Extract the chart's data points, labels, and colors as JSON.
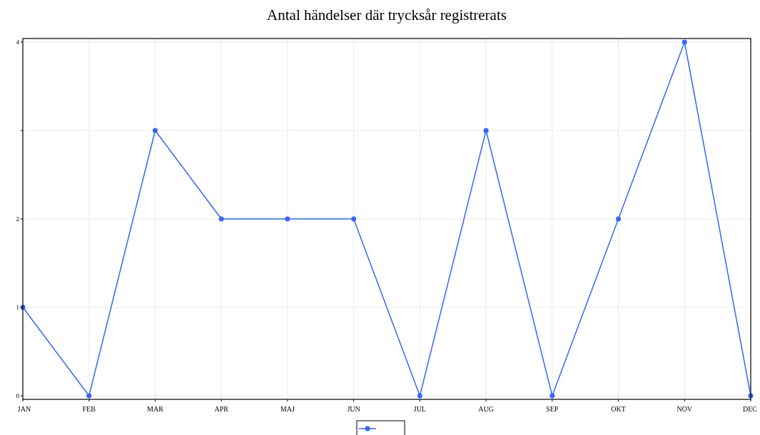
{
  "chart_data": {
    "type": "line",
    "title": "Antal händelser där trycksår registrerats",
    "categories": [
      "JAN",
      "FEB",
      "MAR",
      "APR",
      "MAJ",
      "JUN",
      "JUL",
      "AUG",
      "SEP",
      "OKT",
      "NOV",
      "DEC"
    ],
    "series": [
      {
        "color": "#3366ff",
        "values": [
          1,
          0,
          3,
          2,
          2,
          2,
          0,
          3,
          0,
          2,
          4,
          0
        ]
      }
    ],
    "ylim": [
      0,
      4
    ],
    "yticks": [
      0,
      1,
      2,
      {
        "value": 3,
        "label": null
      },
      4
    ],
    "grid": true,
    "marker": "circle",
    "line_style": "solid"
  }
}
